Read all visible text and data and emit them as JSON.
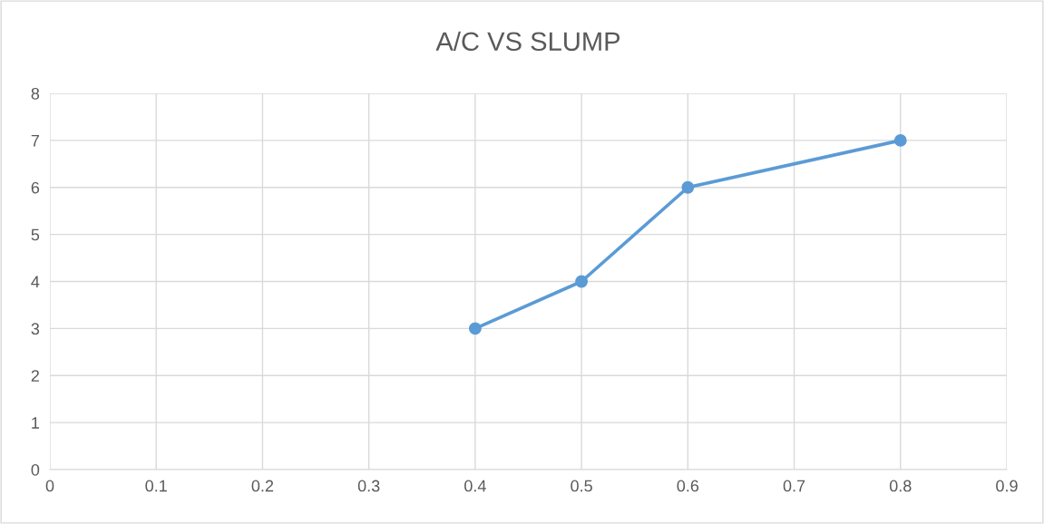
{
  "chart_data": {
    "type": "line",
    "title": "A/C VS SLUMP",
    "x": [
      0.4,
      0.5,
      0.6,
      0.8
    ],
    "series": [
      {
        "color": "#5b9bd5",
        "values": [
          3,
          4,
          6,
          7
        ]
      }
    ],
    "xlim": [
      0,
      0.9
    ],
    "xticks": [
      {
        "value": 0,
        "label": "0"
      },
      0.1,
      0.2,
      0.3,
      0.4,
      0.5,
      0.6,
      0.7,
      0.8,
      0.9
    ],
    "ylim": [
      0,
      8
    ],
    "yticks": [
      0,
      1,
      2,
      3,
      4,
      5,
      6,
      7,
      8
    ],
    "grid": true,
    "marker": "circle",
    "line_style": "solid",
    "legend": false
  }
}
